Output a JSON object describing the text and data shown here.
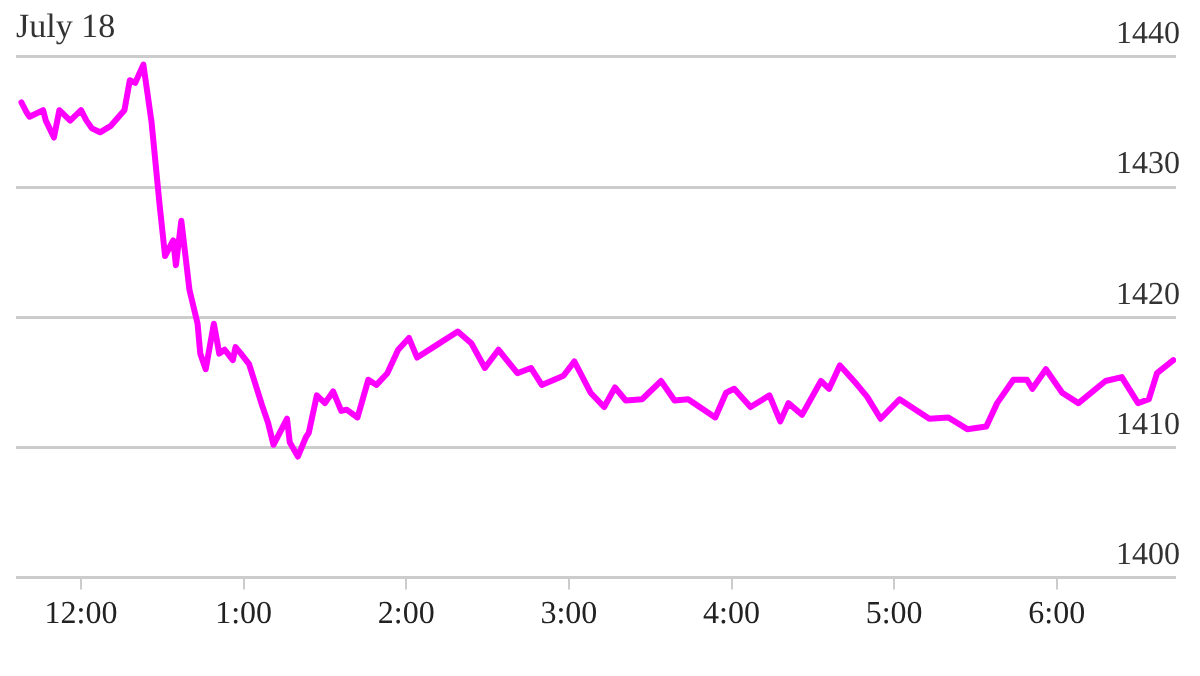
{
  "chart_data": {
    "type": "line",
    "title": "July 18",
    "x": [
      "--07-18T11:38",
      "--07-18T11:40",
      "--07-18T11:41",
      "--07-18T11:46",
      "--07-18T11:47",
      "--07-18T11:50",
      "--07-18T11:52",
      "--07-18T11:56",
      "--07-18T12:00",
      "--07-18T12:02",
      "--07-18T12:04",
      "--07-18T12:07",
      "--07-18T12:11",
      "--07-18T12:16",
      "--07-18T12:18",
      "--07-18T12:20",
      "--07-18T12:23",
      "--07-18T12:26",
      "--07-18T12:29",
      "--07-18T12:31",
      "--07-18T12:34",
      "--07-18T12:35",
      "--07-18T12:37",
      "--07-18T12:40",
      "--07-18T12:43",
      "--07-18T12:44",
      "--07-18T12:46",
      "--07-18T12:49",
      "--07-18T12:51",
      "--07-18T12:53",
      "--07-18T12:56",
      "--07-18T12:57",
      "--07-18T12:59",
      "--07-18T13:02",
      "--07-18T13:07",
      "--07-18T13:09",
      "--07-18T13:11",
      "--07-18T13:16",
      "--07-18T13:17",
      "--07-18T13:20",
      "--07-18T13:23",
      "--07-18T13:24",
      "--07-18T13:27",
      "--07-18T13:30",
      "--07-18T13:33",
      "--07-18T13:36",
      "--07-18T13:38",
      "--07-18T13:42",
      "--07-18T13:46",
      "--07-18T13:49",
      "--07-18T13:53",
      "--07-18T13:57",
      "--07-18T14:01",
      "--07-18T14:04",
      "--07-18T14:10",
      "--07-18T14:19",
      "--07-18T14:24",
      "--07-18T14:29",
      "--07-18T14:34",
      "--07-18T14:41",
      "--07-18T14:46",
      "--07-18T14:50",
      "--07-18T14:58",
      "--07-18T15:02",
      "--07-18T15:08",
      "--07-18T15:13",
      "--07-18T15:17",
      "--07-18T15:21",
      "--07-18T15:27",
      "--07-18T15:34",
      "--07-18T15:39",
      "--07-18T15:44",
      "--07-18T15:54",
      "--07-18T15:58",
      "--07-18T16:01",
      "--07-18T16:07",
      "--07-18T16:14",
      "--07-18T16:18",
      "--07-18T16:21",
      "--07-18T16:26",
      "--07-18T16:33",
      "--07-18T16:36",
      "--07-18T16:40",
      "--07-18T16:46",
      "--07-18T16:50",
      "--07-18T16:55",
      "--07-18T17:02",
      "--07-18T17:13",
      "--07-18T17:20",
      "--07-18T17:27",
      "--07-18T17:34",
      "--07-18T17:38",
      "--07-18T17:44",
      "--07-18T17:49",
      "--07-18T17:51",
      "--07-18T17:56",
      "--07-18T18:02",
      "--07-18T18:08",
      "--07-18T18:18",
      "--07-18T18:24",
      "--07-18T18:30",
      "--07-18T18:34",
      "--07-18T18:37",
      "--07-18T18:43"
    ],
    "series": [
      {
        "color": "#ff00ff",
        "values": [
          1436.5,
          1435.7,
          1435.4,
          1435.9,
          1435.1,
          1433.8,
          1435.9,
          1435.1,
          1435.9,
          1435.1,
          1434.5,
          1434.2,
          1434.7,
          1435.9,
          1438.2,
          1438.0,
          1439.4,
          1435.0,
          1428.6,
          1424.7,
          1425.9,
          1424.0,
          1427.4,
          1422.1,
          1419.5,
          1417.2,
          1416.0,
          1419.5,
          1417.2,
          1417.5,
          1416.7,
          1417.7,
          1417.2,
          1416.4,
          1413.1,
          1411.9,
          1410.2,
          1412.2,
          1410.4,
          1409.3,
          1410.8,
          1411.1,
          1414.0,
          1413.4,
          1414.3,
          1412.8,
          1412.9,
          1412.3,
          1415.2,
          1414.8,
          1415.7,
          1417.5,
          1418.4,
          1416.9,
          1417.7,
          1418.9,
          1418.0,
          1416.1,
          1417.5,
          1415.7,
          1416.1,
          1414.8,
          1415.5,
          1416.6,
          1414.2,
          1413.1,
          1414.6,
          1413.6,
          1413.7,
          1415.1,
          1413.6,
          1413.7,
          1412.3,
          1414.2,
          1414.5,
          1413.1,
          1414.0,
          1412.0,
          1413.4,
          1412.5,
          1415.1,
          1414.5,
          1416.3,
          1414.9,
          1413.9,
          1412.2,
          1413.7,
          1412.2,
          1412.3,
          1411.4,
          1411.6,
          1413.4,
          1415.2,
          1415.2,
          1414.5,
          1416.0,
          1414.2,
          1413.4,
          1415.1,
          1415.4,
          1413.4,
          1413.7,
          1415.7,
          1416.7
        ]
      }
    ],
    "xlim": [
      "--07-18T11:36",
      "--07-18T18:44"
    ],
    "xticks": [
      {
        "value": "--07-18T12:00",
        "label": "12:00"
      },
      {
        "value": "--07-18T13:00",
        "label": "1:00"
      },
      {
        "value": "--07-18T14:00",
        "label": "2:00"
      },
      {
        "value": "--07-18T15:00",
        "label": "3:00"
      },
      {
        "value": "--07-18T16:00",
        "label": "4:00"
      },
      {
        "value": "--07-18T17:00",
        "label": "5:00"
      },
      {
        "value": "--07-18T18:00",
        "label": "6:00"
      }
    ],
    "ylim": [
      1400,
      1440
    ],
    "yticks": [
      1400,
      1410,
      1420,
      1430,
      1440
    ],
    "grid": "y",
    "legend": false,
    "marker": "none",
    "line_style": "solid"
  }
}
